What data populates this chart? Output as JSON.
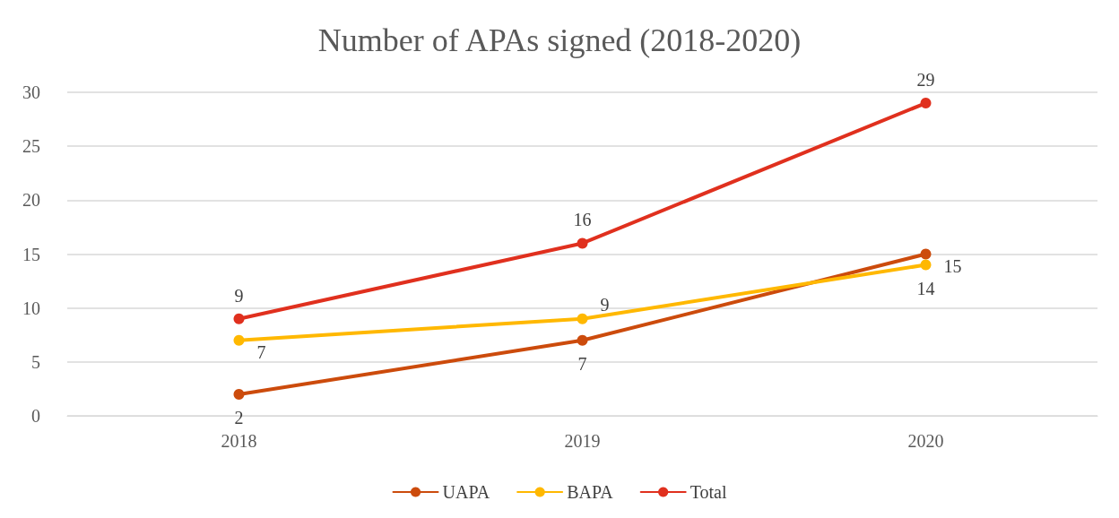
{
  "chart_data": {
    "type": "line",
    "title": "Number of APAs signed (2018-2020)",
    "categories": [
      "2018",
      "2019",
      "2020"
    ],
    "series": [
      {
        "name": "UAPA",
        "color": "#cc4b0c",
        "values": [
          2,
          7,
          15
        ]
      },
      {
        "name": "BAPA",
        "color": "#ffb800",
        "values": [
          7,
          9,
          14
        ]
      },
      {
        "name": "Total",
        "color": "#e0301e",
        "values": [
          9,
          16,
          29
        ]
      }
    ],
    "ylim": [
      0,
      30
    ],
    "yticks": [
      0,
      5,
      10,
      15,
      20,
      25,
      30
    ],
    "grid": "y",
    "legend": "bottom",
    "marker": "circle",
    "line_style": "solid",
    "data_labels": true
  }
}
